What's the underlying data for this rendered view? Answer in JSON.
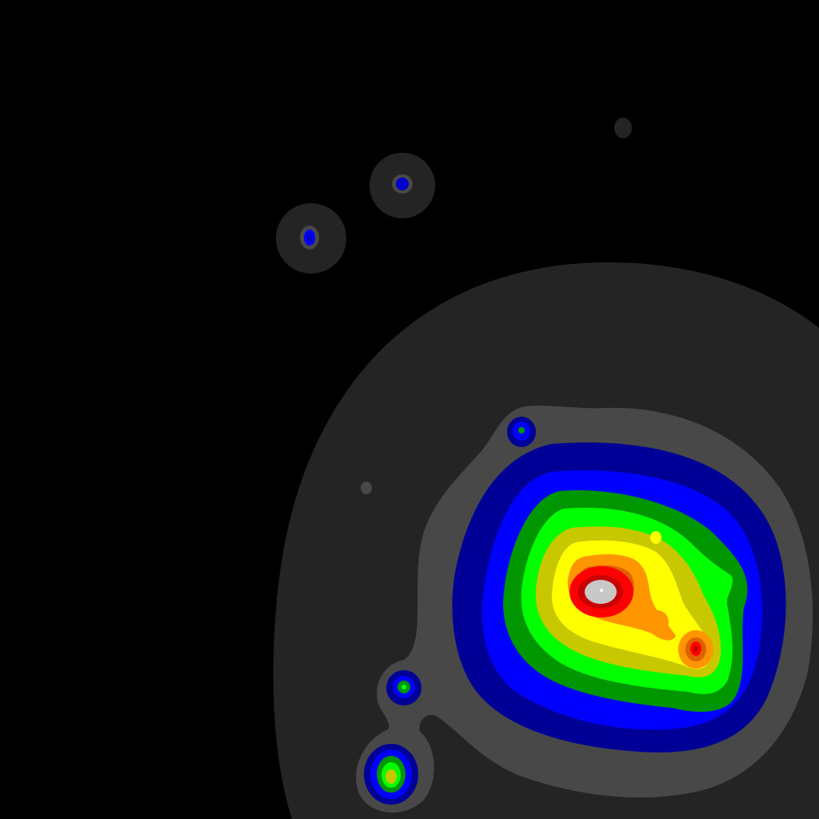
{
  "image": {
    "kind": "filled-contour-density-map",
    "background": "#000000",
    "contour_level_colors": [
      "#242424",
      "#484848",
      "#000096",
      "#0000ff",
      "#009600",
      "#00ff00",
      "#c8c800",
      "#ffff00",
      "#ff9600",
      "#e06000",
      "#ff0000",
      "#c80000",
      "#c8c8c8",
      "#ffffff"
    ],
    "peaks": {
      "main": {
        "highest_level": "white"
      },
      "secondary_red": {
        "highest_level": "red"
      },
      "bottom_left": {
        "highest_level": "orange"
      },
      "left_green": {
        "highest_level": "green"
      },
      "top_small_1": {
        "highest_level": "blue"
      },
      "top_small_2": {
        "highest_level": "blue"
      }
    }
  }
}
